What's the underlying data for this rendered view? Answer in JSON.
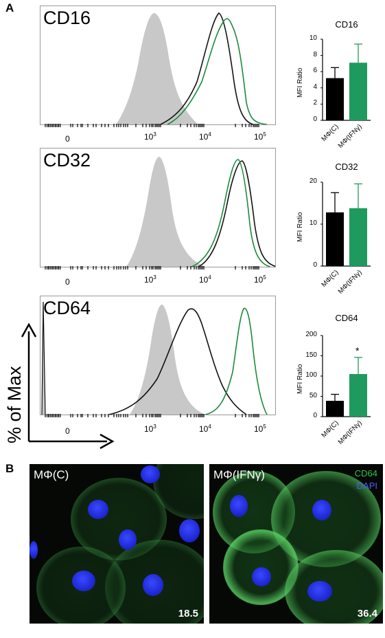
{
  "panel_a_letter": "A",
  "panel_b_letter": "B",
  "histograms": [
    {
      "label": "CD16"
    },
    {
      "label": "CD32"
    },
    {
      "label": "CD64"
    }
  ],
  "histogram_y_axis_label": "% of Max",
  "histogram_x_ticks": [
    "0",
    "3",
    "4",
    "5"
  ],
  "histogram_x_tick_base": "10",
  "bar_charts": {
    "y_axis_label": "MFI Ratio",
    "categories": [
      "MΦ(C)",
      "MΦ(IFNγ)"
    ],
    "colors": [
      "#000000",
      "#1f9a5f"
    ]
  },
  "chart_data": [
    {
      "type": "bar",
      "title": "CD16",
      "ylabel": "MFI Ratio",
      "categories": [
        "MΦ(C)",
        "MΦ(IFNγ)"
      ],
      "values": [
        5.2,
        7.1
      ],
      "errors": [
        1.3,
        2.3
      ],
      "ylim": [
        0,
        10
      ],
      "yticks": [
        0,
        2,
        4,
        6,
        8,
        10
      ]
    },
    {
      "type": "bar",
      "title": "CD32",
      "ylabel": "MFI Ratio",
      "categories": [
        "MΦ(C)",
        "MΦ(IFNγ)"
      ],
      "values": [
        12.8,
        13.8
      ],
      "errors": [
        4.7,
        5.8
      ],
      "ylim": [
        0,
        20
      ],
      "yticks": [
        0,
        10,
        20
      ]
    },
    {
      "type": "bar",
      "title": "CD64",
      "ylabel": "MFI Ratio",
      "categories": [
        "MΦ(C)",
        "MΦ(IFNγ)"
      ],
      "values": [
        39,
        105
      ],
      "errors": [
        16,
        41
      ],
      "ylim": [
        0,
        200
      ],
      "yticks": [
        0,
        50,
        100,
        150,
        200
      ],
      "annotation": "*"
    }
  ],
  "micrographs": [
    {
      "label": "MΦ(C)",
      "value": "18.5"
    },
    {
      "label": "MΦ(IFNγ)",
      "value": "36.4",
      "legend": [
        "CD64",
        "DAPI"
      ]
    }
  ]
}
